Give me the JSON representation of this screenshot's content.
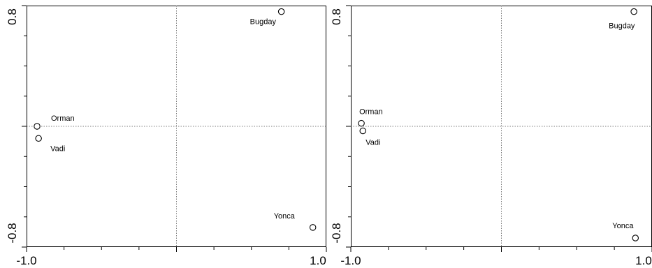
{
  "chart_data": [
    {
      "type": "scatter",
      "xlim": [
        -1.0,
        1.0
      ],
      "ylim": [
        -0.8,
        0.8
      ],
      "x_tick_labels": [
        "-1.0",
        "1.0"
      ],
      "y_tick_labels": [
        "0.8",
        "-0.8"
      ],
      "reference_lines": {
        "x": 0,
        "y": 0
      },
      "points": [
        {
          "label": "Bugday",
          "x": 0.7,
          "y": 0.76
        },
        {
          "label": "Orman",
          "x": -0.93,
          "y": 0.0
        },
        {
          "label": "Vadi",
          "x": -0.92,
          "y": -0.08
        },
        {
          "label": "Yonca",
          "x": 0.91,
          "y": -0.67
        }
      ]
    },
    {
      "type": "scatter",
      "xlim": [
        -1.0,
        1.0
      ],
      "ylim": [
        -0.8,
        0.8
      ],
      "x_tick_labels": [
        "-1.0",
        "1.0"
      ],
      "y_tick_labels": [
        "0.8",
        "-0.8"
      ],
      "reference_lines": {
        "x": 0,
        "y": 0
      },
      "points": [
        {
          "label": "Bugday",
          "x": 0.88,
          "y": 0.76
        },
        {
          "label": "Orman",
          "x": -0.93,
          "y": 0.02
        },
        {
          "label": "Vadi",
          "x": -0.92,
          "y": -0.03
        },
        {
          "label": "Yonca",
          "x": 0.89,
          "y": -0.74
        }
      ]
    }
  ]
}
